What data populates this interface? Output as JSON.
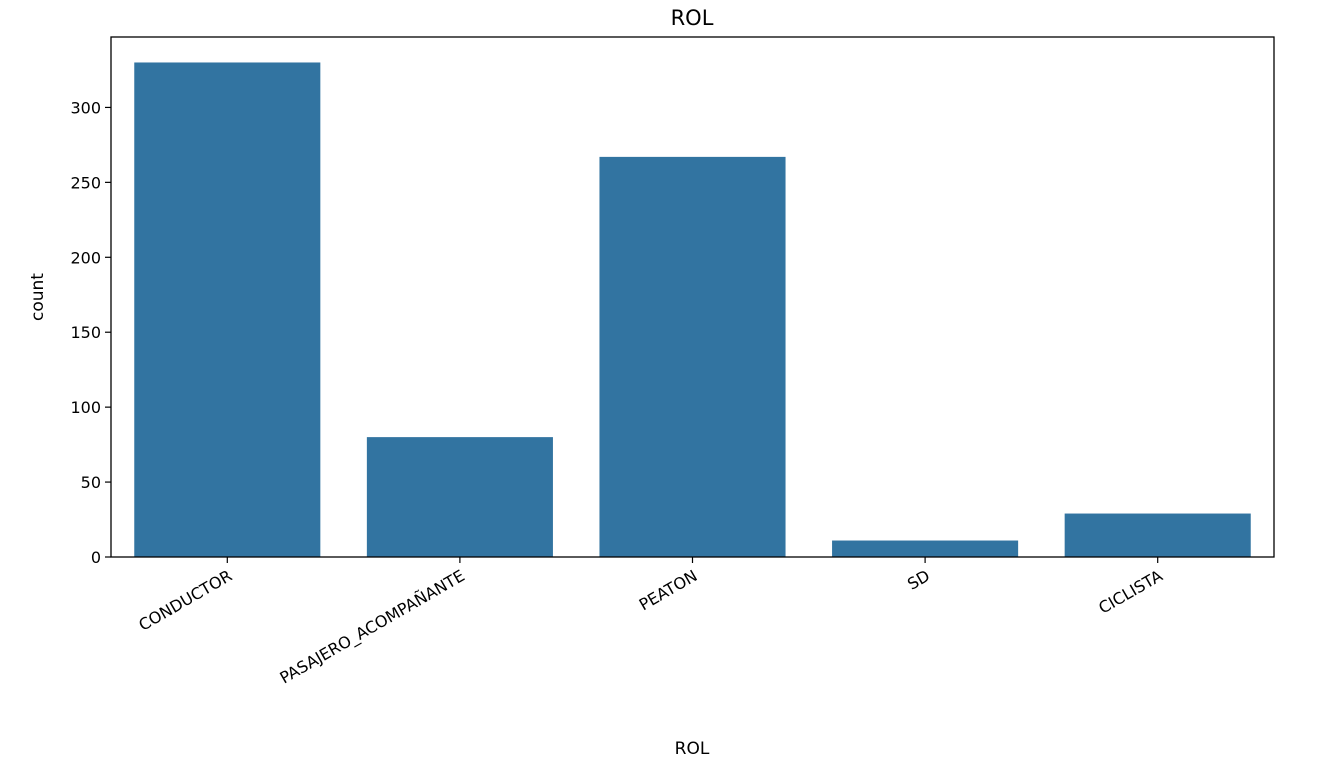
{
  "chart_data": {
    "type": "bar",
    "title": "ROL",
    "xlabel": "ROL",
    "ylabel": "count",
    "categories": [
      "CONDUCTOR",
      "PASAJERO_ACOMPAÑANTE",
      "PEATON",
      "SD",
      "CICLISTA"
    ],
    "values": [
      330,
      80,
      267,
      11,
      29
    ],
    "ylim": [
      0,
      347
    ],
    "yticks": [
      0,
      50,
      100,
      150,
      200,
      250,
      300
    ],
    "yticks_labels": [
      "0",
      "50",
      "100",
      "150",
      "200",
      "250",
      "300"
    ],
    "bar_color": "#3274a1",
    "grid": false,
    "legend": "none"
  }
}
